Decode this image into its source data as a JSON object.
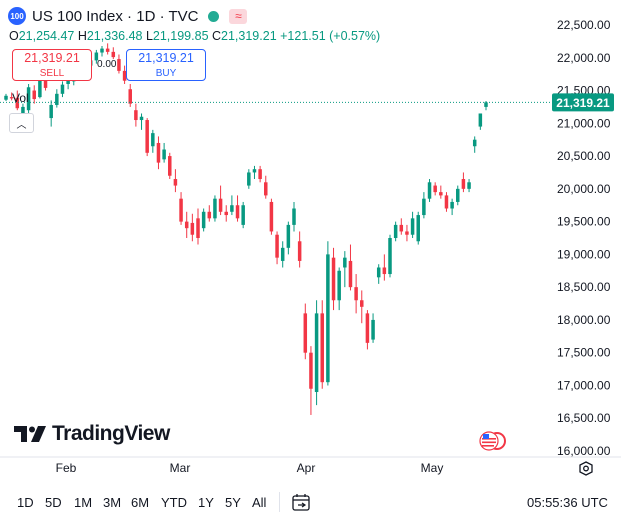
{
  "header": {
    "badge": "100",
    "title": "US 100 Index · 1D · TVC",
    "ohlc": {
      "o_label": "O",
      "o": "21,254.47",
      "h_label": "H",
      "h": "21,336.48",
      "l_label": "L",
      "l": "21,199.85",
      "c_label": "C",
      "c": "21,319.21",
      "change": "+121.51 (+0.57%)"
    },
    "flag_glyph": "≈"
  },
  "trade": {
    "sell_price": "21,319.21",
    "sell_label": "SELL",
    "buy_price": "21,319.21",
    "buy_label": "BUY",
    "spread": "0.00"
  },
  "vol_label": "Vol",
  "collapse_glyph": "︿",
  "watermark": "TradingView",
  "bottom_bar": {
    "ranges": [
      "1D",
      "5D",
      "1M",
      "3M",
      "6M",
      "YTD",
      "1Y",
      "5Y",
      "All"
    ],
    "time": "05:55:36 UTC"
  },
  "colors": {
    "up": "#089981",
    "down": "#f23645",
    "last_price_bg": "#089981",
    "accent": "#2962ff"
  },
  "chart_data": {
    "type": "candlestick",
    "y_ticks": [
      16000,
      16500,
      17000,
      17500,
      18000,
      18500,
      19000,
      19500,
      20000,
      20500,
      21000,
      21500,
      22000,
      22500
    ],
    "y_tick_labels": [
      "16,000.00",
      "16,500.00",
      "17,000.00",
      "17,500.00",
      "18,000.00",
      "18,500.00",
      "19,000.00",
      "19,500.00",
      "20,000.00",
      "20,500.00",
      "21,000.00",
      "21,500.00",
      "22,000.00",
      "22,500.00"
    ],
    "x_tick_labels": [
      "Feb",
      "Mar",
      "Apr",
      "May"
    ],
    "last_price": 21319.21,
    "last_price_label": "21,319.21",
    "candles": [
      {
        "o": 21360,
        "h": 21450,
        "l": 21340,
        "c": 21420
      },
      {
        "o": 21400,
        "h": 21470,
        "l": 21350,
        "c": 21380
      },
      {
        "o": 21390,
        "h": 21500,
        "l": 21200,
        "c": 21230
      },
      {
        "o": 21120,
        "h": 21300,
        "l": 21000,
        "c": 21250
      },
      {
        "o": 21200,
        "h": 21600,
        "l": 21150,
        "c": 21550
      },
      {
        "o": 21500,
        "h": 21580,
        "l": 21300,
        "c": 21370
      },
      {
        "o": 21400,
        "h": 21750,
        "l": 21380,
        "c": 21720
      },
      {
        "o": 21700,
        "h": 21820,
        "l": 21500,
        "c": 21540
      },
      {
        "o": 21080,
        "h": 21350,
        "l": 20950,
        "c": 21280
      },
      {
        "o": 21280,
        "h": 21520,
        "l": 21240,
        "c": 21450
      },
      {
        "o": 21450,
        "h": 21640,
        "l": 21400,
        "c": 21590
      },
      {
        "o": 21600,
        "h": 21680,
        "l": 21520,
        "c": 21650
      },
      {
        "o": 21640,
        "h": 21760,
        "l": 21580,
        "c": 21720
      },
      {
        "o": 21720,
        "h": 21860,
        "l": 21660,
        "c": 21800
      },
      {
        "o": 21800,
        "h": 21930,
        "l": 21740,
        "c": 21880
      },
      {
        "o": 21880,
        "h": 22000,
        "l": 21830,
        "c": 21960
      },
      {
        "o": 21960,
        "h": 22120,
        "l": 21910,
        "c": 22080
      },
      {
        "o": 22080,
        "h": 22180,
        "l": 22020,
        "c": 22140
      },
      {
        "o": 22140,
        "h": 22220,
        "l": 22050,
        "c": 22090
      },
      {
        "o": 22090,
        "h": 22160,
        "l": 21980,
        "c": 22010
      },
      {
        "o": 21980,
        "h": 22050,
        "l": 21760,
        "c": 21800
      },
      {
        "o": 21800,
        "h": 21880,
        "l": 21600,
        "c": 21650
      },
      {
        "o": 21520,
        "h": 21600,
        "l": 21250,
        "c": 21300
      },
      {
        "o": 21200,
        "h": 21300,
        "l": 20950,
        "c": 21050
      },
      {
        "o": 21050,
        "h": 21150,
        "l": 20900,
        "c": 21100
      },
      {
        "o": 21050,
        "h": 21080,
        "l": 20500,
        "c": 20550
      },
      {
        "o": 20650,
        "h": 20900,
        "l": 20550,
        "c": 20850
      },
      {
        "o": 20700,
        "h": 20800,
        "l": 20300,
        "c": 20400
      },
      {
        "o": 20450,
        "h": 20700,
        "l": 20400,
        "c": 20600
      },
      {
        "o": 20500,
        "h": 20550,
        "l": 20150,
        "c": 20200
      },
      {
        "o": 20150,
        "h": 20300,
        "l": 19950,
        "c": 20050
      },
      {
        "o": 19850,
        "h": 19950,
        "l": 19450,
        "c": 19500
      },
      {
        "o": 19500,
        "h": 19650,
        "l": 19250,
        "c": 19400
      },
      {
        "o": 19480,
        "h": 19620,
        "l": 19200,
        "c": 19300
      },
      {
        "o": 19550,
        "h": 19700,
        "l": 19150,
        "c": 19250
      },
      {
        "o": 19400,
        "h": 19700,
        "l": 19350,
        "c": 19650
      },
      {
        "o": 19650,
        "h": 19750,
        "l": 19500,
        "c": 19550
      },
      {
        "o": 19550,
        "h": 19900,
        "l": 19500,
        "c": 19850
      },
      {
        "o": 19850,
        "h": 20050,
        "l": 19600,
        "c": 19650
      },
      {
        "o": 19650,
        "h": 19750,
        "l": 19500,
        "c": 19600
      },
      {
        "o": 19650,
        "h": 19900,
        "l": 19600,
        "c": 19750
      },
      {
        "o": 19750,
        "h": 19900,
        "l": 19500,
        "c": 19550
      },
      {
        "o": 19450,
        "h": 19800,
        "l": 19400,
        "c": 19750
      },
      {
        "o": 20050,
        "h": 20300,
        "l": 20000,
        "c": 20250
      },
      {
        "o": 20250,
        "h": 20350,
        "l": 20150,
        "c": 20300
      },
      {
        "o": 20300,
        "h": 20350,
        "l": 20100,
        "c": 20150
      },
      {
        "o": 20100,
        "h": 20200,
        "l": 19850,
        "c": 19900
      },
      {
        "o": 19800,
        "h": 19850,
        "l": 19300,
        "c": 19350
      },
      {
        "o": 19300,
        "h": 19350,
        "l": 18850,
        "c": 18950
      },
      {
        "o": 18900,
        "h": 19200,
        "l": 18800,
        "c": 19100
      },
      {
        "o": 19100,
        "h": 19500,
        "l": 19000,
        "c": 19450
      },
      {
        "o": 19450,
        "h": 19800,
        "l": 19350,
        "c": 19700
      },
      {
        "o": 19200,
        "h": 19350,
        "l": 18800,
        "c": 18900
      },
      {
        "o": 18100,
        "h": 18250,
        "l": 17400,
        "c": 17500
      },
      {
        "o": 17500,
        "h": 17600,
        "l": 16550,
        "c": 16950
      },
      {
        "o": 16900,
        "h": 18300,
        "l": 16700,
        "c": 18100
      },
      {
        "o": 18100,
        "h": 18300,
        "l": 16950,
        "c": 17050
      },
      {
        "o": 17050,
        "h": 19200,
        "l": 17000,
        "c": 19000
      },
      {
        "o": 18950,
        "h": 19100,
        "l": 18150,
        "c": 18300
      },
      {
        "o": 18300,
        "h": 18800,
        "l": 18150,
        "c": 18750
      },
      {
        "o": 18800,
        "h": 19050,
        "l": 18500,
        "c": 18950
      },
      {
        "o": 18900,
        "h": 19150,
        "l": 18450,
        "c": 18500
      },
      {
        "o": 18500,
        "h": 18700,
        "l": 18100,
        "c": 18300
      },
      {
        "o": 18300,
        "h": 18450,
        "l": 17950,
        "c": 18200
      },
      {
        "o": 18100,
        "h": 18150,
        "l": 17550,
        "c": 17650
      },
      {
        "o": 17700,
        "h": 18100,
        "l": 17650,
        "c": 18000
      },
      {
        "o": 18650,
        "h": 18850,
        "l": 18550,
        "c": 18800
      },
      {
        "o": 18800,
        "h": 19000,
        "l": 18600,
        "c": 18700
      },
      {
        "o": 18700,
        "h": 19300,
        "l": 18650,
        "c": 19250
      },
      {
        "o": 19250,
        "h": 19500,
        "l": 19200,
        "c": 19450
      },
      {
        "o": 19450,
        "h": 19550,
        "l": 19300,
        "c": 19350
      },
      {
        "o": 19350,
        "h": 19450,
        "l": 19200,
        "c": 19300
      },
      {
        "o": 19300,
        "h": 19650,
        "l": 19250,
        "c": 19550
      },
      {
        "o": 19200,
        "h": 19650,
        "l": 19150,
        "c": 19600
      },
      {
        "o": 19600,
        "h": 19950,
        "l": 19550,
        "c": 19850
      },
      {
        "o": 19850,
        "h": 20150,
        "l": 19800,
        "c": 20100
      },
      {
        "o": 20050,
        "h": 20100,
        "l": 19900,
        "c": 19950
      },
      {
        "o": 19950,
        "h": 20050,
        "l": 19850,
        "c": 19900
      },
      {
        "o": 19900,
        "h": 19950,
        "l": 19650,
        "c": 19700
      },
      {
        "o": 19700,
        "h": 19850,
        "l": 19600,
        "c": 19800
      },
      {
        "o": 19800,
        "h": 20050,
        "l": 19750,
        "c": 20000
      },
      {
        "o": 20150,
        "h": 20250,
        "l": 19950,
        "c": 20000
      },
      {
        "o": 20000,
        "h": 20150,
        "l": 19950,
        "c": 20100
      },
      {
        "o": 20650,
        "h": 20800,
        "l": 20550,
        "c": 20750
      },
      {
        "o": 20950,
        "h": 21150,
        "l": 20900,
        "c": 21150
      },
      {
        "o": 21250,
        "h": 21340,
        "l": 21200,
        "c": 21319.21
      }
    ]
  }
}
